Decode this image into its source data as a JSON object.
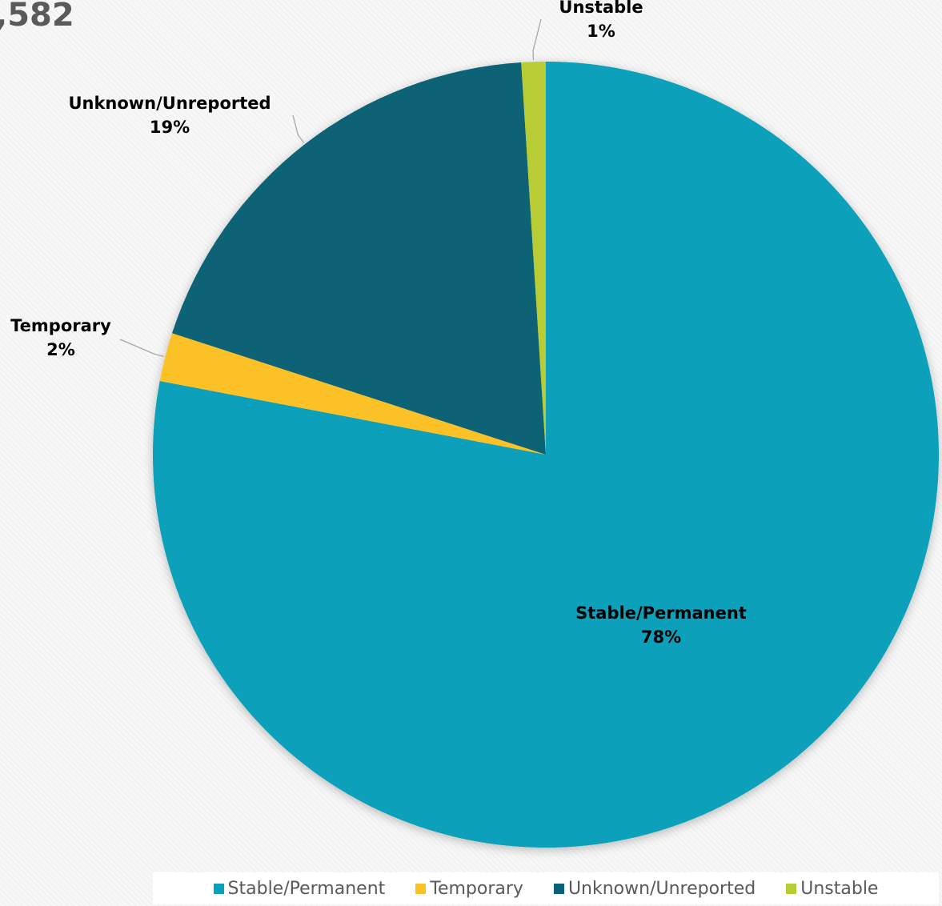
{
  "total_label": ",582",
  "chart_data": {
    "type": "pie",
    "start_angle_deg": 0,
    "direction": "clockwise",
    "legend_position": "bottom-right",
    "slices": [
      {
        "name": "Stable/Permanent",
        "value": 78,
        "label": "78%",
        "color": "#07a0ba"
      },
      {
        "name": "Temporary",
        "value": 2,
        "label": "2%",
        "color": "#fcc125"
      },
      {
        "name": "Unknown/Unreported",
        "value": 19,
        "label": "19%",
        "color": "#0a6276"
      },
      {
        "name": "Unstable",
        "value": 1,
        "label": "1%",
        "color": "#b7cc35"
      }
    ]
  }
}
